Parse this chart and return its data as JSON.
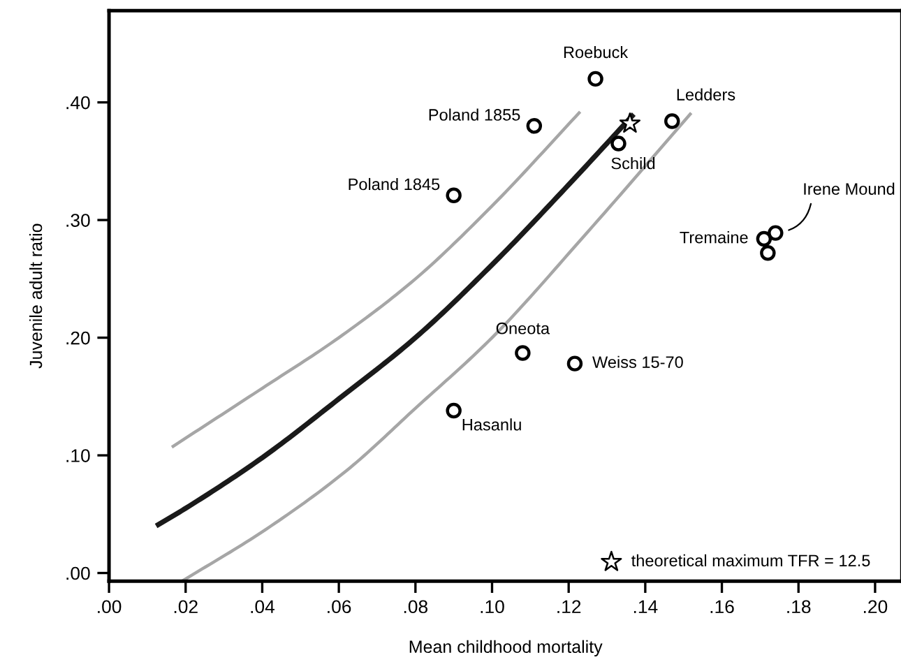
{
  "chart_data": {
    "type": "scatter",
    "xlabel": "Mean childhood mortality",
    "ylabel": "Juvenile adult ratio",
    "xlim": [
      0,
      0.207
    ],
    "ylim": [
      -0.007,
      0.478
    ],
    "xticks": [
      {
        "value": 0,
        "label": ".00"
      },
      {
        "value": 0.02,
        "label": ".02"
      },
      {
        "value": 0.04,
        "label": ".04"
      },
      {
        "value": 0.06,
        "label": ".06"
      },
      {
        "value": 0.08,
        "label": ".08"
      },
      {
        "value": 0.1,
        "label": ".10"
      },
      {
        "value": 0.12,
        "label": ".12"
      },
      {
        "value": 0.14,
        "label": ".14"
      },
      {
        "value": 0.16,
        "label": ".16"
      },
      {
        "value": 0.18,
        "label": ".18"
      },
      {
        "value": 0.2,
        "label": ".20"
      }
    ],
    "yticks": [
      {
        "value": 0,
        "label": ".00"
      },
      {
        "value": 0.1,
        "label": ".10"
      },
      {
        "value": 0.2,
        "label": ".20"
      },
      {
        "value": 0.3,
        "label": ".30"
      },
      {
        "value": 0.4,
        "label": ".40"
      }
    ],
    "grid": false,
    "legend": "bottom right",
    "series": [
      {
        "type": "line",
        "color": "#a6a6a6",
        "x": [
          0.0164,
          0.04,
          0.06,
          0.08,
          0.1,
          0.123
        ],
        "values": [
          0.107,
          0.157,
          0.2,
          0.25,
          0.312,
          0.392
        ]
      },
      {
        "type": "line",
        "color": "#1a1a1a",
        "x": [
          0.0123,
          0.02,
          0.04,
          0.06,
          0.08,
          0.1,
          0.12,
          0.137
        ],
        "values": [
          0.04,
          0.055,
          0.098,
          0.148,
          0.2,
          0.262,
          0.33,
          0.39
        ]
      },
      {
        "type": "line",
        "color": "#a6a6a6",
        "x": [
          0.019,
          0.04,
          0.062,
          0.08,
          0.1,
          0.125,
          0.152
        ],
        "values": [
          -0.007,
          0.035,
          0.087,
          0.14,
          0.2,
          0.29,
          0.391
        ]
      },
      {
        "marker": "circle",
        "color": "#000000",
        "x": [
          0.127,
          0.111,
          0.09,
          0.133,
          0.147,
          0.171,
          0.174,
          0.172,
          0.108,
          0.1216,
          0.09
        ],
        "values": [
          0.42,
          0.38,
          0.321,
          0.365,
          0.384,
          0.284,
          0.289,
          0.272,
          0.187,
          0.178,
          0.138
        ]
      },
      {
        "type": "scatter",
        "marker": "star",
        "color": "#000000",
        "name": "theoretical maximum TFR = 12.5",
        "x": [
          0.136
        ],
        "values": [
          0.382
        ]
      }
    ],
    "annotations": [
      {
        "text": "Roebuck",
        "x": 0.127,
        "y": 0.42
      },
      {
        "text": "Poland 1855",
        "x": 0.111,
        "y": 0.38
      },
      {
        "text": "Poland 1845",
        "x": 0.09,
        "y": 0.321
      },
      {
        "text": "Schild",
        "x": 0.133,
        "y": 0.365
      },
      {
        "text": "Ledders",
        "x": 0.147,
        "y": 0.384
      },
      {
        "text": "Tremaine",
        "x": 0.171,
        "y": 0.284
      },
      {
        "text": "Irene Mound",
        "x": 0.174,
        "y": 0.289
      },
      {
        "text": "Oneota",
        "x": 0.108,
        "y": 0.187
      },
      {
        "text": "Weiss 15-70",
        "x": 0.1216,
        "y": 0.178
      },
      {
        "text": "Hasanlu",
        "x": 0.09,
        "y": 0.138
      }
    ]
  }
}
